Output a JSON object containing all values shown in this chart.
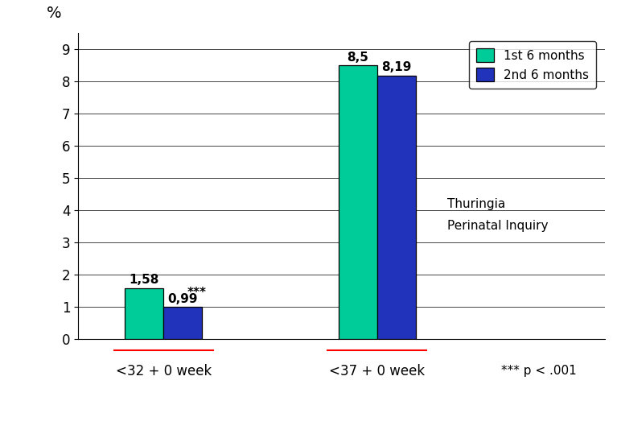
{
  "categories": [
    "<32 + 0 week",
    "<37 + 0 week"
  ],
  "series": [
    {
      "label": "1st 6 months",
      "values": [
        1.58,
        8.5
      ],
      "color": "#00CC99"
    },
    {
      "label": "2nd 6 months",
      "values": [
        0.99,
        8.19
      ],
      "color": "#2233BB"
    }
  ],
  "bar_labels": [
    [
      "1,58",
      "8,5"
    ],
    [
      "0,99",
      "8,19"
    ]
  ],
  "star_label": "***",
  "p_label": "*** p < .001",
  "watermark_line1": "Thuringia",
  "watermark_line2": "Perinatal Inquiry",
  "ylabel": "%",
  "ylim": [
    0,
    9.5
  ],
  "yticks": [
    0,
    1,
    2,
    3,
    4,
    5,
    6,
    7,
    8,
    9
  ],
  "bar_width": 0.27,
  "group_centers": [
    0.9,
    2.4
  ],
  "xlim": [
    0.3,
    4.0
  ],
  "bg": "#FFFFFF"
}
